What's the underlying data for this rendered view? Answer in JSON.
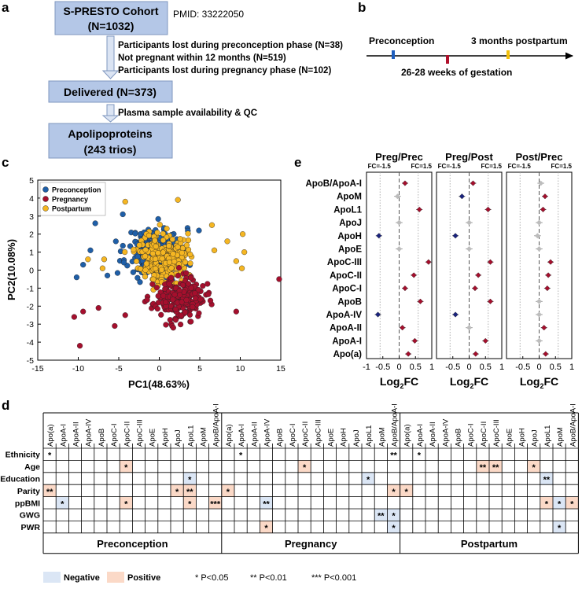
{
  "panel_a": {
    "letter": "a",
    "cohort_title": "S-PRESTO Cohort",
    "cohort_n": "(N=1032)",
    "pmid": "PMID: 33222050",
    "loss_notes": [
      "Participants lost during preconception phase (N=38)",
      "Not pregnant within 12 months (N=519)",
      "Participants lost during pregnancy phase (N=102)"
    ],
    "delivered": "Delivered (N=373)",
    "qc_note": "Plasma sample availability & QC",
    "final_title": "Apolipoproteins",
    "final_n": "(243 trios)",
    "box_color": "#b4c7e7"
  },
  "panel_b": {
    "letter": "b",
    "labels": {
      "preconception": "Preconception",
      "postpartum": "3 months postpartum",
      "gestation": "26-28 weeks of gestation"
    },
    "marker_colors": {
      "preconception": "#1f5fbf",
      "gestation": "#b0102c",
      "postpartum": "#f2c00c"
    }
  },
  "panel_c": {
    "letter": "c",
    "chart_data": {
      "type": "scatter",
      "xlabel": "PC1(48.63%)",
      "ylabel": "PC2(10.08%)",
      "xlim": [
        -15,
        15
      ],
      "ylim": [
        -5,
        5
      ],
      "xticks": [
        "-15",
        "-10",
        "-5",
        "0",
        "5",
        "10",
        "15"
      ],
      "yticks": [
        "5",
        "4",
        "3",
        "2",
        "1",
        "0",
        "-1",
        "-2",
        "-3",
        "-4",
        "-5"
      ],
      "legend": [
        {
          "name": "Preconception",
          "color": "#1f5fa8"
        },
        {
          "name": "Pregnancy",
          "color": "#a50f2d"
        },
        {
          "name": "Postpartum",
          "color": "#f5b622"
        }
      ],
      "series": [
        {
          "name": "Preconception",
          "cluster": {
            "cx": -0.5,
            "cy": 1.0,
            "sx": 2.3,
            "sy": 0.9,
            "n": 230
          },
          "points": [
            [
              -8.5,
              1.1
            ],
            [
              -7.9,
              2.6
            ],
            [
              -9.4,
              0.3
            ],
            [
              -4.5,
              3.1
            ],
            [
              4.9,
              2.2
            ],
            [
              -10.2,
              -0.4
            ],
            [
              -6.4,
              -0.3
            ]
          ]
        },
        {
          "name": "Pregnancy",
          "cluster": {
            "cx": 2.5,
            "cy": -1.6,
            "sx": 2.1,
            "sy": 0.75,
            "n": 230
          },
          "points": [
            [
              -9.8,
              -4.2
            ],
            [
              14.8,
              -0.5
            ],
            [
              -9.4,
              -2.3
            ],
            [
              -10.5,
              -2.6
            ],
            [
              -5.5,
              -3.1
            ],
            [
              9.5,
              -2.3
            ],
            [
              -4.2,
              -2.5
            ],
            [
              -7.5,
              -2.1
            ]
          ]
        },
        {
          "name": "Postpartum",
          "cluster": {
            "cx": 0.4,
            "cy": 0.7,
            "sx": 2.0,
            "sy": 1.0,
            "n": 240
          },
          "points": [
            [
              10.5,
              1.0
            ],
            [
              10.3,
              2.0
            ],
            [
              -4.2,
              3.8
            ],
            [
              9.5,
              0.5
            ],
            [
              10.2,
              0.1
            ],
            [
              6.5,
              2.5
            ],
            [
              -8.8,
              0.6
            ],
            [
              2.3,
              3.9
            ],
            [
              -6.8,
              0.6
            ],
            [
              -7.0,
              0.1
            ],
            [
              6.8,
              1.1
            ],
            [
              8.4,
              1.6
            ]
          ]
        }
      ]
    }
  },
  "panel_e": {
    "letter": "e",
    "chart_data": {
      "type": "forest",
      "xlabel": "Log2FC",
      "xlabel_main": "Log",
      "xlabel_sub": "2",
      "xlabel_tail": "FC",
      "xlim": [
        -1,
        1
      ],
      "xticks": [
        "-1",
        "-0.5",
        "0",
        "0.5",
        "1"
      ],
      "fc_labels": [
        "FC=-1.5",
        "FC=1.5"
      ],
      "fc_cutoffs": [
        -0.585,
        0.585
      ],
      "proteins": [
        "ApoB/ApoA-I",
        "ApoM",
        "ApoL1",
        "ApoJ",
        "ApoH",
        "ApoE",
        "ApoC-III",
        "ApoC-II",
        "ApoC-I",
        "ApoB",
        "ApoA-IV",
        "ApoA-II",
        "ApoA-I",
        "Apo(a)"
      ],
      "colors": {
        "up": "#a50f2d",
        "down": "#1a237e",
        "ns": "#bdbdbd"
      },
      "panels": [
        {
          "title": "Preg/Prec",
          "values": [
            0.18,
            -0.05,
            0.62,
            0.0,
            -0.62,
            0.0,
            0.9,
            0.45,
            0.18,
            0.65,
            -0.65,
            0.1,
            0.48,
            0.28
          ],
          "status": [
            "up",
            "ns",
            "up",
            "ns",
            "down",
            "ns",
            "up",
            "up",
            "up",
            "up",
            "down",
            "up",
            "up",
            "up"
          ]
        },
        {
          "title": "Preg/Post",
          "values": [
            0.12,
            -0.22,
            0.58,
            0.0,
            -0.42,
            0.0,
            0.65,
            0.28,
            0.18,
            0.65,
            -0.42,
            0.0,
            0.5,
            0.2
          ],
          "status": [
            "up",
            "down",
            "up",
            "ns",
            "down",
            "ns",
            "up",
            "up",
            "up",
            "up",
            "down",
            "ns",
            "up",
            "up"
          ]
        },
        {
          "title": "Post/Prec",
          "values": [
            0.05,
            0.18,
            0.12,
            0.0,
            -0.05,
            0.0,
            0.35,
            0.28,
            0.25,
            0.0,
            0.0,
            0.15,
            0.0,
            0.2
          ],
          "status": [
            "ns",
            "up",
            "up",
            "ns",
            "ns",
            "ns",
            "up",
            "up",
            "up",
            "ns",
            "ns",
            "up",
            "ns",
            "up"
          ]
        }
      ]
    }
  },
  "panel_d": {
    "letter": "d",
    "chart_data": {
      "type": "heatmap",
      "columns": [
        "Apo(a)",
        "ApoA-I",
        "ApoA-II",
        "ApoA-IV",
        "ApoB",
        "ApoC-I",
        "ApoC-II",
        "ApoC-III",
        "ApoE",
        "ApoH",
        "ApoJ",
        "ApoL1",
        "ApoM",
        "ApoB/ApoA-I"
      ],
      "rows": [
        "Ethnicity",
        "Age",
        "Education",
        "Parity",
        "ppBMI",
        "GWG",
        "PWR"
      ],
      "groups": [
        {
          "label": "Preconception",
          "cells": [
            {
              "r": 0,
              "c": 0,
              "sig": "*",
              "dir": "none"
            },
            {
              "r": 1,
              "c": 6,
              "sig": "*",
              "dir": "pos"
            },
            {
              "r": 2,
              "c": 11,
              "sig": "*",
              "dir": "neg"
            },
            {
              "r": 3,
              "c": 0,
              "sig": "**",
              "dir": "pos"
            },
            {
              "r": 3,
              "c": 10,
              "sig": "*",
              "dir": "pos"
            },
            {
              "r": 3,
              "c": 11,
              "sig": "**",
              "dir": "pos"
            },
            {
              "r": 4,
              "c": 1,
              "sig": "*",
              "dir": "neg"
            },
            {
              "r": 4,
              "c": 6,
              "sig": "*",
              "dir": "pos"
            },
            {
              "r": 4,
              "c": 11,
              "sig": "*",
              "dir": "pos"
            },
            {
              "r": 4,
              "c": 13,
              "sig": "***",
              "dir": "pos"
            }
          ]
        },
        {
          "label": "Pregnancy",
          "cells": [
            {
              "r": 0,
              "c": 1,
              "sig": "*",
              "dir": "none"
            },
            {
              "r": 0,
              "c": 13,
              "sig": "**",
              "dir": "none"
            },
            {
              "r": 1,
              "c": 6,
              "sig": "*",
              "dir": "pos"
            },
            {
              "r": 2,
              "c": 11,
              "sig": "*",
              "dir": "neg"
            },
            {
              "r": 3,
              "c": 0,
              "sig": "*",
              "dir": "pos"
            },
            {
              "r": 3,
              "c": 13,
              "sig": "*",
              "dir": "pos"
            },
            {
              "r": 4,
              "c": 3,
              "sig": "**",
              "dir": "neg"
            },
            {
              "r": 5,
              "c": 12,
              "sig": "**",
              "dir": "neg"
            },
            {
              "r": 5,
              "c": 13,
              "sig": "*",
              "dir": "neg"
            },
            {
              "r": 6,
              "c": 3,
              "sig": "*",
              "dir": "pos"
            },
            {
              "r": 6,
              "c": 13,
              "sig": "*",
              "dir": "neg"
            }
          ]
        },
        {
          "label": "Postpartum",
          "cells": [
            {
              "r": 0,
              "c": 1,
              "sig": "*",
              "dir": "none"
            },
            {
              "r": 1,
              "c": 6,
              "sig": "**",
              "dir": "pos"
            },
            {
              "r": 1,
              "c": 7,
              "sig": "**",
              "dir": "pos"
            },
            {
              "r": 1,
              "c": 10,
              "sig": "*",
              "dir": "pos"
            },
            {
              "r": 2,
              "c": 11,
              "sig": "**",
              "dir": "neg"
            },
            {
              "r": 3,
              "c": 0,
              "sig": "*",
              "dir": "pos"
            },
            {
              "r": 4,
              "c": 11,
              "sig": "*",
              "dir": "pos"
            },
            {
              "r": 4,
              "c": 12,
              "sig": "*",
              "dir": "neg"
            },
            {
              "r": 4,
              "c": 13,
              "sig": "*",
              "dir": "pos"
            },
            {
              "r": 6,
              "c": 12,
              "sig": "*",
              "dir": "neg"
            }
          ]
        }
      ],
      "legend": {
        "negative": "Negative",
        "positive": "Positive",
        "p1": "* P<0.05",
        "p2": "** P<0.01",
        "p3": "*** P<0.001"
      },
      "colors": {
        "neg": "#dbe6f5",
        "pos": "#fbd9c7"
      }
    }
  }
}
